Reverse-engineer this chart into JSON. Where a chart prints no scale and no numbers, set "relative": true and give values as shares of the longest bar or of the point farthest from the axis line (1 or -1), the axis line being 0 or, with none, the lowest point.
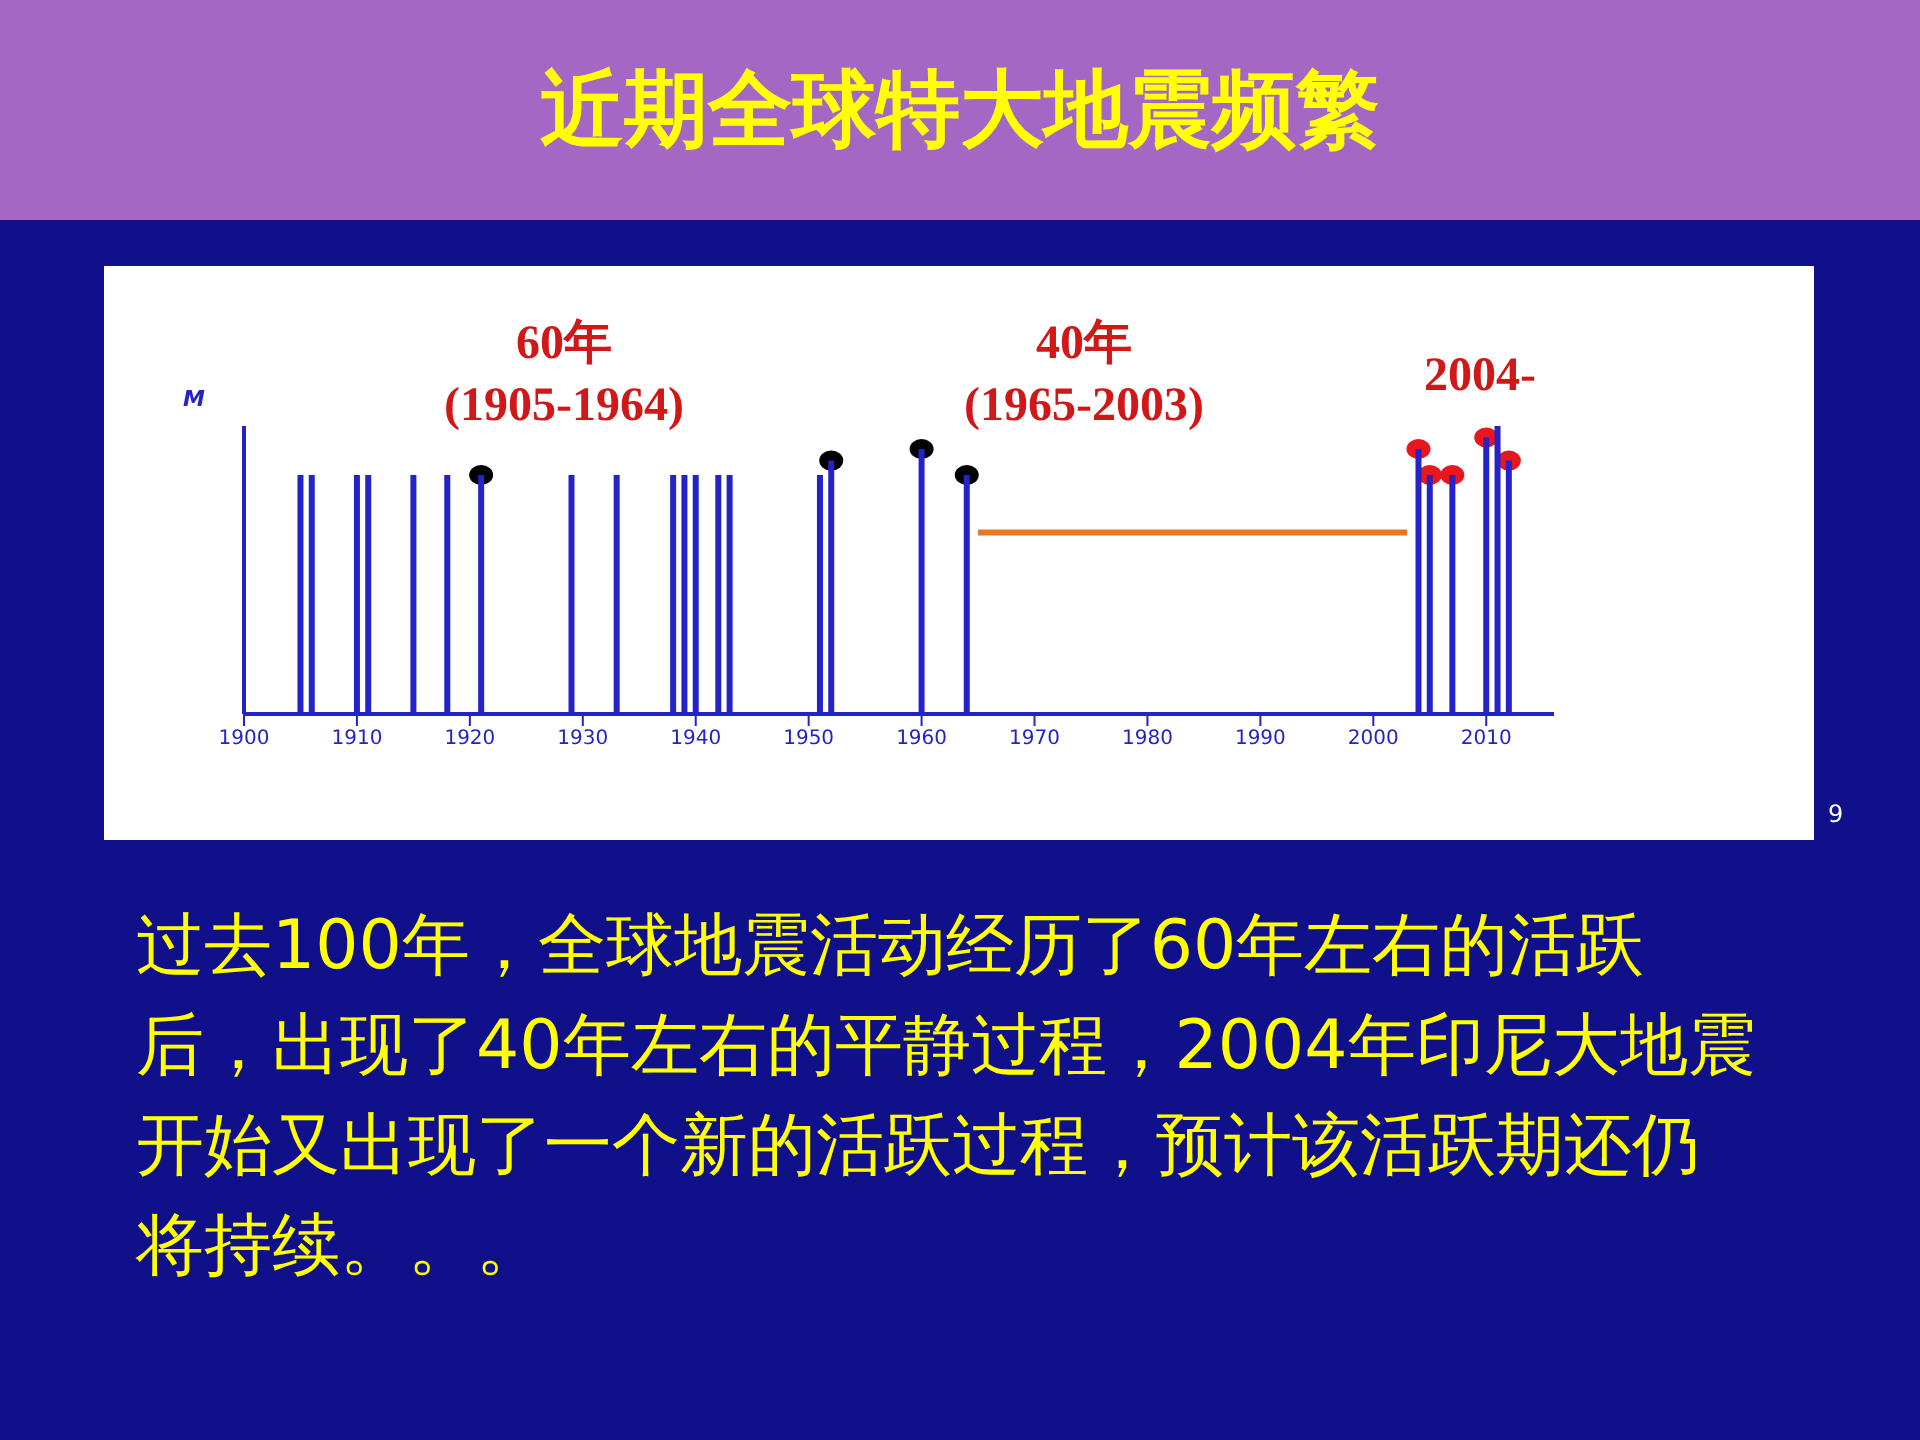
{
  "chart_data": {
    "type": "bar",
    "title": "近期全球特大地震频繁",
    "ylabel": "M",
    "relative": true,
    "xlim": [
      1900,
      2016
    ],
    "xticks": [
      1900,
      1910,
      1920,
      1930,
      1940,
      1950,
      1960,
      1970,
      1980,
      1990,
      2000,
      2010
    ],
    "grid": false,
    "legend": false,
    "annotations": [
      "60年\n(1905-1964)",
      "40年\n(1965-2003)",
      "2004-",
      "过去100年，全球地震活动经历了60年左右的活跃后，出现了40年左右的平静过程，2004年印尼大地震开始又出现了一个新的活跃过程，预计该活跃期还仍将持续。。。",
      "9"
    ],
    "series": [
      {
        "marker": "none",
        "color": "#2323c8",
        "x": [
          1905,
          1906,
          1910,
          1911,
          1915,
          1918,
          1921,
          1929,
          1933,
          1938,
          1939,
          1940,
          1942,
          1943,
          1951,
          1952,
          1960,
          1964,
          2004,
          2005,
          2007,
          2010,
          2011,
          2012
        ],
        "values": [
          0.83,
          0.83,
          0.83,
          0.83,
          0.83,
          0.83,
          0.83,
          0.83,
          0.83,
          0.83,
          0.83,
          0.83,
          0.83,
          0.83,
          0.83,
          0.88,
          0.92,
          0.83,
          0.92,
          0.83,
          0.83,
          0.96,
          1,
          0.88
        ]
      },
      {
        "type": "scatter",
        "marker": "circle",
        "color": "#000000",
        "x": [
          1921,
          1952,
          1960,
          1964
        ],
        "values": [
          0.83,
          0.88,
          0.92,
          0.83
        ]
      },
      {
        "type": "scatter",
        "marker": "circle",
        "color": "#e8161e",
        "x": [
          2004,
          2005,
          2007,
          2010,
          2012
        ],
        "values": [
          0.92,
          0.83,
          0.83,
          0.96,
          0.88
        ]
      },
      {
        "type": "line",
        "marker": "none",
        "color": "#e87722",
        "x": [
          1965,
          2003
        ],
        "values": [
          0.63,
          0.63
        ]
      }
    ]
  }
}
